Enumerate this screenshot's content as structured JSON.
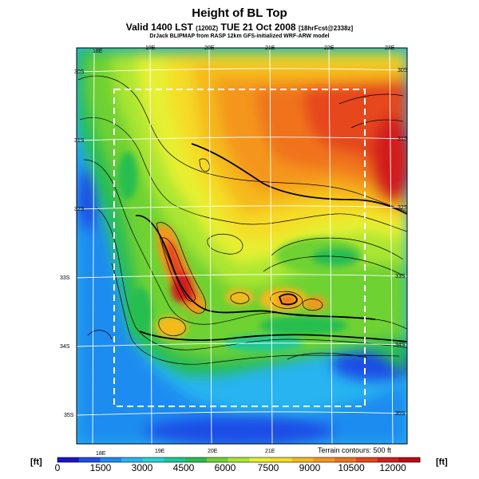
{
  "header": {
    "title": "Height of BL Top",
    "subtitle_main": "Valid 1400 LST",
    "subtitle_code": "(1200Z)",
    "subtitle_date": "TUE 21 Oct 2008",
    "subtitle_run": "[18hrFcst@2338z]",
    "credit": "DrJack BLIPMAP from RASP 12km GFS-initialized WRF-ARW model"
  },
  "map": {
    "lon_ticks_top": [
      "18E",
      "19E",
      "20E",
      "21E",
      "22E",
      "23E"
    ],
    "lon_ticks_bottom": [
      "18E",
      "19E",
      "20E",
      "21E"
    ],
    "lat_ticks_left": [
      "30S",
      "31S",
      "32S",
      "33S",
      "34S",
      "35S"
    ],
    "lat_ticks_right": [
      "30S",
      "31S",
      "32S",
      "33S",
      "34S",
      "35S"
    ],
    "terrain_note": "Terrain contours: 500 ft"
  },
  "colorbar": {
    "unit_left": "[ft]",
    "unit_right": "[ft]",
    "labels": [
      "0",
      "1500",
      "3000",
      "4500",
      "6000",
      "7500",
      "9000",
      "10500",
      "12000"
    ],
    "colors": [
      "#1a14c8",
      "#1e4ee6",
      "#1e8cf0",
      "#28b4f0",
      "#28d2d2",
      "#1ec896",
      "#28be50",
      "#6ed232",
      "#aae632",
      "#e6f032",
      "#f5dc28",
      "#f5b91e",
      "#f5961e",
      "#f0731e",
      "#e6461e",
      "#d21e1e",
      "#be0a14"
    ]
  }
}
